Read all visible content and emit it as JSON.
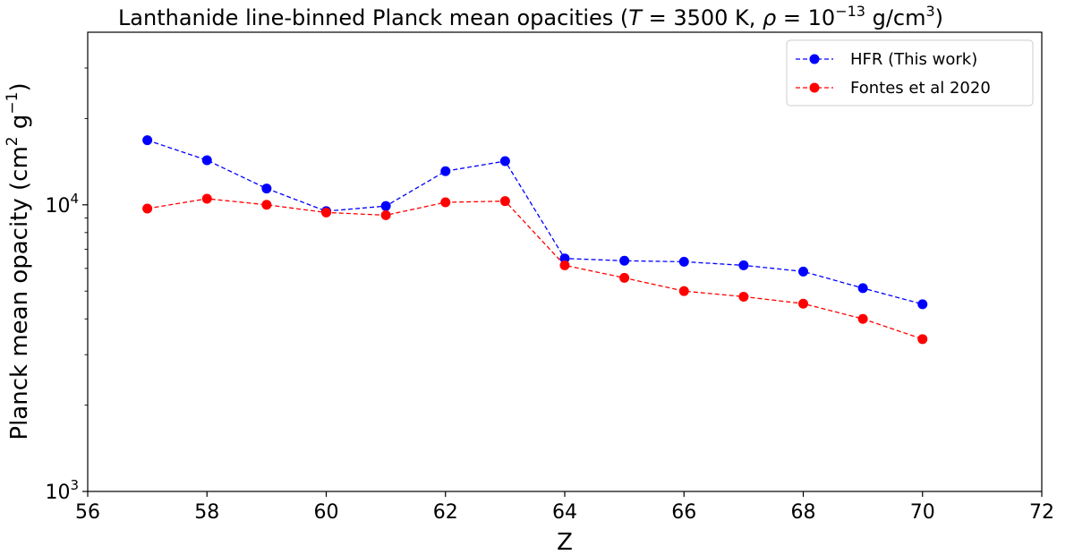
{
  "chart_data": {
    "type": "line",
    "title": "Lanthanide line-binned Planck mean opacities (T = 3500 K, ρ = 10⁻¹³ g/cm³)",
    "title_parts": {
      "main": "Lanthanide line-binned Planck mean opacities (",
      "t_var": "T",
      "t_value": " = 3500 K, ",
      "rho_var": "ρ",
      "rho_value": " = 10",
      "rho_exp": "−13",
      "rho_unit": " g/cm",
      "rho_unit_exp": "3",
      "close": ")"
    },
    "xlabel": "Z",
    "ylabel_parts": {
      "main": "Planck mean opacity (cm",
      "exp1": "2",
      "mid": " g",
      "exp2": "−1",
      "close": ")"
    },
    "ylabel": "Planck mean opacity (cm² g⁻¹)",
    "xlim": [
      56,
      72
    ],
    "ylim": [
      1000,
      40000
    ],
    "yscale": "log",
    "x_ticks": [
      "56",
      "58",
      "60",
      "62",
      "64",
      "66",
      "68",
      "70",
      "72"
    ],
    "y_ticks": [
      {
        "base": "10",
        "exp": "3",
        "value": 1000
      },
      {
        "base": "10",
        "exp": "4",
        "value": 10000
      }
    ],
    "legend_position": "top-right",
    "x": [
      57,
      58,
      59,
      60,
      61,
      62,
      63,
      64,
      65,
      66,
      67,
      68,
      69,
      70
    ],
    "series": [
      {
        "name": "HFR (This work)",
        "color": "#0000ff",
        "linestyle": "dashed",
        "marker": "circle",
        "values": [
          16800,
          14300,
          11400,
          9500,
          9900,
          13100,
          14200,
          6500,
          6380,
          6330,
          6150,
          5850,
          5120,
          4500
        ]
      },
      {
        "name": "Fontes et al 2020",
        "color": "#ff0000",
        "linestyle": "dashed",
        "marker": "circle",
        "values": [
          9700,
          10500,
          10000,
          9400,
          9200,
          10200,
          10300,
          6150,
          5560,
          5000,
          4780,
          4520,
          4000,
          3400
        ]
      }
    ]
  }
}
